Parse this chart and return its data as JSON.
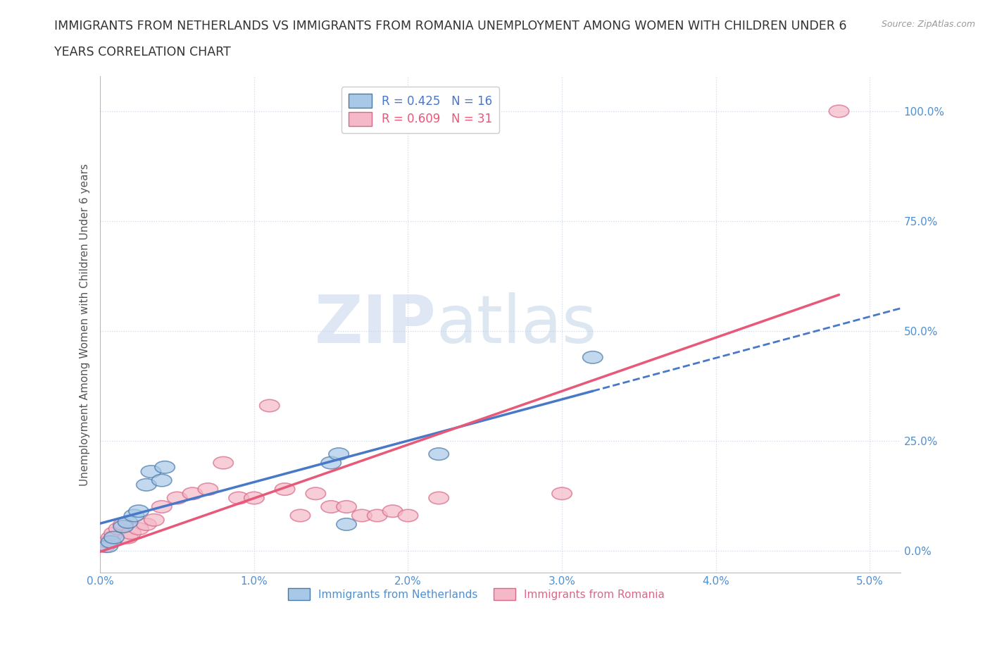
{
  "title_line1": "IMMIGRANTS FROM NETHERLANDS VS IMMIGRANTS FROM ROMANIA UNEMPLOYMENT AMONG WOMEN WITH CHILDREN UNDER 6",
  "title_line2": "YEARS CORRELATION CHART",
  "source": "Source: ZipAtlas.com",
  "ylabel": "Unemployment Among Women with Children Under 6 years",
  "xlim": [
    0.0,
    0.052
  ],
  "ylim": [
    -0.05,
    1.08
  ],
  "x_ticks": [
    0.0,
    0.01,
    0.02,
    0.03,
    0.04,
    0.05
  ],
  "x_tick_labels": [
    "0.0%",
    "1.0%",
    "2.0%",
    "3.0%",
    "4.0%",
    "5.0%"
  ],
  "y_ticks": [
    0.0,
    0.25,
    0.5,
    0.75,
    1.0
  ],
  "y_tick_labels": [
    "0.0%",
    "25.0%",
    "50.0%",
    "75.0%",
    "100.0%"
  ],
  "netherlands_face": "#a8c8e8",
  "netherlands_edge": "#4878a8",
  "romania_face": "#f4b8c8",
  "romania_edge": "#d86888",
  "netherlands_label": "Immigrants from Netherlands",
  "romania_label": "Immigrants from Romania",
  "netherlands_R": 0.425,
  "netherlands_N": 16,
  "romania_R": 0.609,
  "romania_N": 31,
  "nl_line_color": "#4878c8",
  "ro_line_color": "#e85878",
  "tick_color": "#5090d0",
  "netherlands_x": [
    0.0005,
    0.0007,
    0.0009,
    0.0015,
    0.0018,
    0.0022,
    0.0025,
    0.003,
    0.0033,
    0.004,
    0.0042,
    0.015,
    0.0155,
    0.016,
    0.022,
    0.032
  ],
  "netherlands_y": [
    0.01,
    0.02,
    0.03,
    0.055,
    0.065,
    0.08,
    0.09,
    0.15,
    0.18,
    0.16,
    0.19,
    0.2,
    0.22,
    0.06,
    0.22,
    0.44
  ],
  "romania_x": [
    0.0003,
    0.0005,
    0.0007,
    0.0009,
    0.0012,
    0.0015,
    0.0018,
    0.002,
    0.0025,
    0.003,
    0.0035,
    0.004,
    0.005,
    0.006,
    0.007,
    0.008,
    0.009,
    0.01,
    0.011,
    0.012,
    0.013,
    0.014,
    0.015,
    0.016,
    0.017,
    0.018,
    0.019,
    0.02,
    0.022,
    0.03,
    0.048
  ],
  "romania_y": [
    0.01,
    0.02,
    0.03,
    0.04,
    0.05,
    0.06,
    0.03,
    0.04,
    0.05,
    0.06,
    0.07,
    0.1,
    0.12,
    0.13,
    0.14,
    0.2,
    0.12,
    0.12,
    0.33,
    0.14,
    0.08,
    0.13,
    0.1,
    0.1,
    0.08,
    0.08,
    0.09,
    0.08,
    0.12,
    0.13,
    1.0
  ],
  "watermark_zip": "ZIP",
  "watermark_atlas": "atlas",
  "background_color": "#ffffff",
  "grid_color": "#d0d8e8"
}
